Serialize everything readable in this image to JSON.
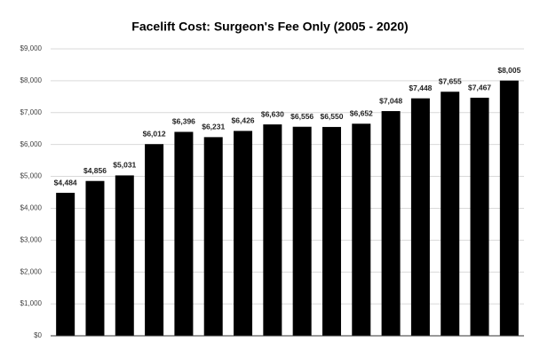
{
  "chart_data": {
    "type": "bar",
    "title": "Facelift Cost: Surgeon's Fee Only (2005 - 2020)",
    "categories": [
      null,
      null,
      null,
      null,
      null,
      null,
      null,
      null,
      null,
      null,
      null,
      null,
      null,
      null,
      null,
      null
    ],
    "values": [
      4484,
      4856,
      5031,
      6012,
      6396,
      6231,
      6426,
      6630,
      6556,
      6550,
      6652,
      7048,
      7448,
      7655,
      7467,
      8005
    ],
    "value_labels": [
      "$4,484",
      "$4,856",
      "$5,031",
      "$6,012",
      "$6,396",
      "$6,231",
      "$6,426",
      "$6,630",
      "$6,556",
      "$6,550",
      "$6,652",
      "$7,048",
      "$7,448",
      "$7,655",
      "$7,467",
      "$8,005"
    ],
    "color": "#000000",
    "ylim": [
      0,
      9000
    ],
    "yticks": [
      {
        "value": 0,
        "label": "$0"
      },
      {
        "value": 1000,
        "label": "$1,000"
      },
      {
        "value": 2000,
        "label": "$2,000"
      },
      {
        "value": 3000,
        "label": "$3,000"
      },
      {
        "value": 4000,
        "label": "$4,000"
      },
      {
        "value": 5000,
        "label": "$5,000"
      },
      {
        "value": 6000,
        "label": "$6,000"
      },
      {
        "value": 7000,
        "label": "$7,000"
      },
      {
        "value": 8000,
        "label": "$8,000"
      },
      {
        "value": 9000,
        "label": "$9,000"
      }
    ],
    "grid": true
  }
}
